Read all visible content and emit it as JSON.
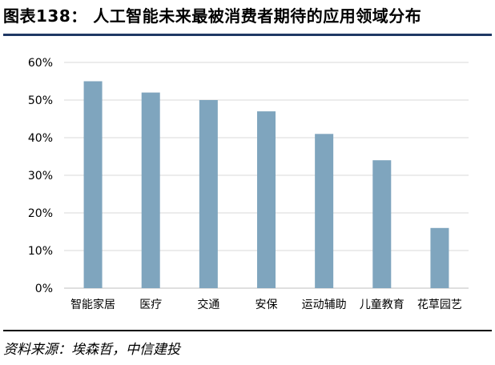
{
  "title": "图表138： 人工智能未来最被消费者期待的应用领域分布",
  "source": "资料来源：埃森哲，中信建投",
  "colors": {
    "bar": "#7fa5be",
    "grid": "#d9d9d9",
    "axis": "#bfbfbf",
    "title_rule": "#1f3864"
  },
  "chart_data": {
    "type": "bar",
    "categories": [
      "智能家居",
      "医疗",
      "交通",
      "安保",
      "运动辅助",
      "儿童教育",
      "花草园艺"
    ],
    "values": [
      55,
      52,
      50,
      47,
      41,
      34,
      16
    ],
    "unit": "%",
    "ylim": [
      0,
      60
    ],
    "yticks": [
      "0%",
      "10%",
      "20%",
      "30%",
      "40%",
      "50%",
      "60%"
    ],
    "grid": true,
    "legend": "none"
  }
}
